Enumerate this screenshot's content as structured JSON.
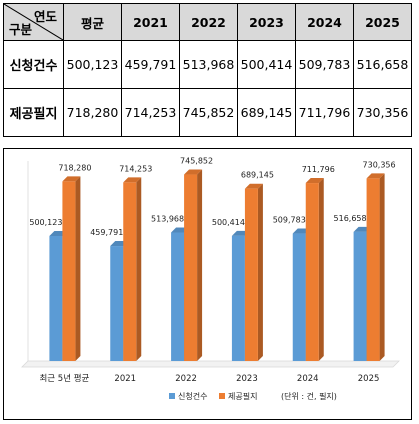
{
  "table": {
    "corner_top": "연도",
    "corner_bottom": "구분",
    "headers": [
      "평균",
      "2021",
      "2022",
      "2023",
      "2024",
      "2025"
    ],
    "rows": [
      {
        "label": "신청건수",
        "values": [
          "500,123",
          "459,791",
          "513,968",
          "500,414",
          "509,783",
          "516,658"
        ]
      },
      {
        "label": "제공필지",
        "values": [
          "718,280",
          "714,253",
          "745,852",
          "689,145",
          "711,796",
          "730,356"
        ]
      }
    ]
  },
  "chart_data": {
    "type": "bar",
    "categories": [
      "최근 5년 평균",
      "2021",
      "2022",
      "2023",
      "2024",
      "2025"
    ],
    "series": [
      {
        "name": "신청건수",
        "color": "#5b9bd5",
        "values": [
          500123,
          459791,
          513968,
          500414,
          509783,
          516658
        ],
        "labels": [
          "500,123",
          "459,791",
          "513,968",
          "500,414",
          "509,783",
          "516,658"
        ]
      },
      {
        "name": "제공필지",
        "color": "#ed7d31",
        "values": [
          718280,
          714253,
          745852,
          689145,
          711796,
          730356
        ],
        "labels": [
          "718,280",
          "714,253",
          "745,852",
          "689,145",
          "711,796",
          "730,356"
        ]
      }
    ],
    "ylim": [
      0,
      800000
    ],
    "unit_note": "(단위 : 건, 필지)",
    "legend_position": "bottom",
    "style": "3d-column"
  }
}
